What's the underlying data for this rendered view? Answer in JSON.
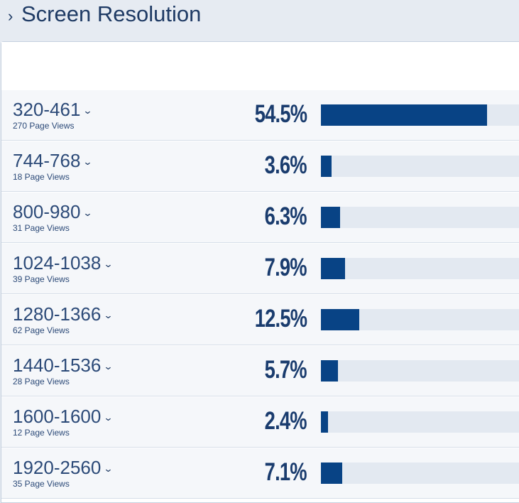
{
  "header": {
    "title": "Screen Resolution"
  },
  "rows": [
    {
      "range": "320-461",
      "views": "270 Page Views",
      "percent": "54.5%",
      "value": 54.5
    },
    {
      "range": "744-768",
      "views": "18 Page Views",
      "percent": "3.6%",
      "value": 3.6
    },
    {
      "range": "800-980",
      "views": "31 Page Views",
      "percent": "6.3%",
      "value": 6.3
    },
    {
      "range": "1024-1038",
      "views": "39 Page Views",
      "percent": "7.9%",
      "value": 7.9
    },
    {
      "range": "1280-1366",
      "views": "62 Page Views",
      "percent": "12.5%",
      "value": 12.5
    },
    {
      "range": "1440-1536",
      "views": "28 Page Views",
      "percent": "5.7%",
      "value": 5.7
    },
    {
      "range": "1600-1600",
      "views": "12 Page Views",
      "percent": "2.4%",
      "value": 2.4
    },
    {
      "range": "1920-2560",
      "views": "35 Page Views",
      "percent": "7.1%",
      "value": 7.1
    }
  ],
  "colors": {
    "accent": "#084385",
    "track": "#e3e9f1",
    "text": "#1e3a64"
  }
}
